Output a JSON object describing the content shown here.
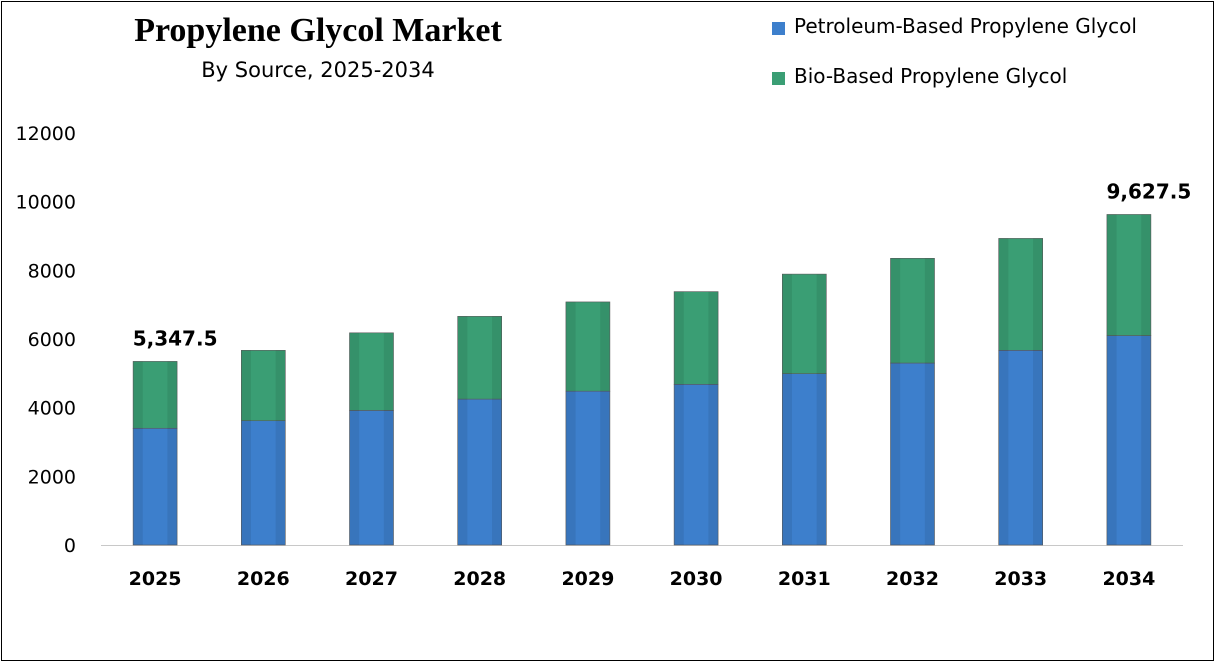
{
  "chart_data": {
    "type": "bar",
    "stacked": true,
    "title": "Propylene Glycol Market",
    "subtitle": "By Source, 2025-2034",
    "categories": [
      "2025",
      "2026",
      "2027",
      "2028",
      "2029",
      "2030",
      "2031",
      "2032",
      "2033",
      "2034"
    ],
    "series": [
      {
        "name": "Petroleum-Based Propylene Glycol",
        "color": "#3D7FCC",
        "values": [
          3400,
          3620,
          3920,
          4250,
          4480,
          4680,
          4990,
          5300,
          5670,
          6100
        ]
      },
      {
        "name": "Bio-Based Propylene Glycol",
        "color": "#3A9E74",
        "values": [
          1947.5,
          2050,
          2260,
          2410,
          2600,
          2700,
          2900,
          3050,
          3260,
          3527.5
        ]
      }
    ],
    "totals": [
      5347.5,
      5670,
      6180,
      6660,
      7080,
      7380,
      7890,
      8350,
      8930,
      9627.5
    ],
    "data_labels": [
      {
        "category": "2025",
        "text": "5,347.5"
      },
      {
        "category": "2034",
        "text": "9,627.5"
      }
    ],
    "yticks": [
      "0",
      "2000",
      "4000",
      "6000",
      "8000",
      "10000",
      "12000"
    ],
    "ylim": [
      0,
      12000
    ],
    "xlabel": "",
    "ylabel": "",
    "legend": "top-right",
    "grid": false
  }
}
